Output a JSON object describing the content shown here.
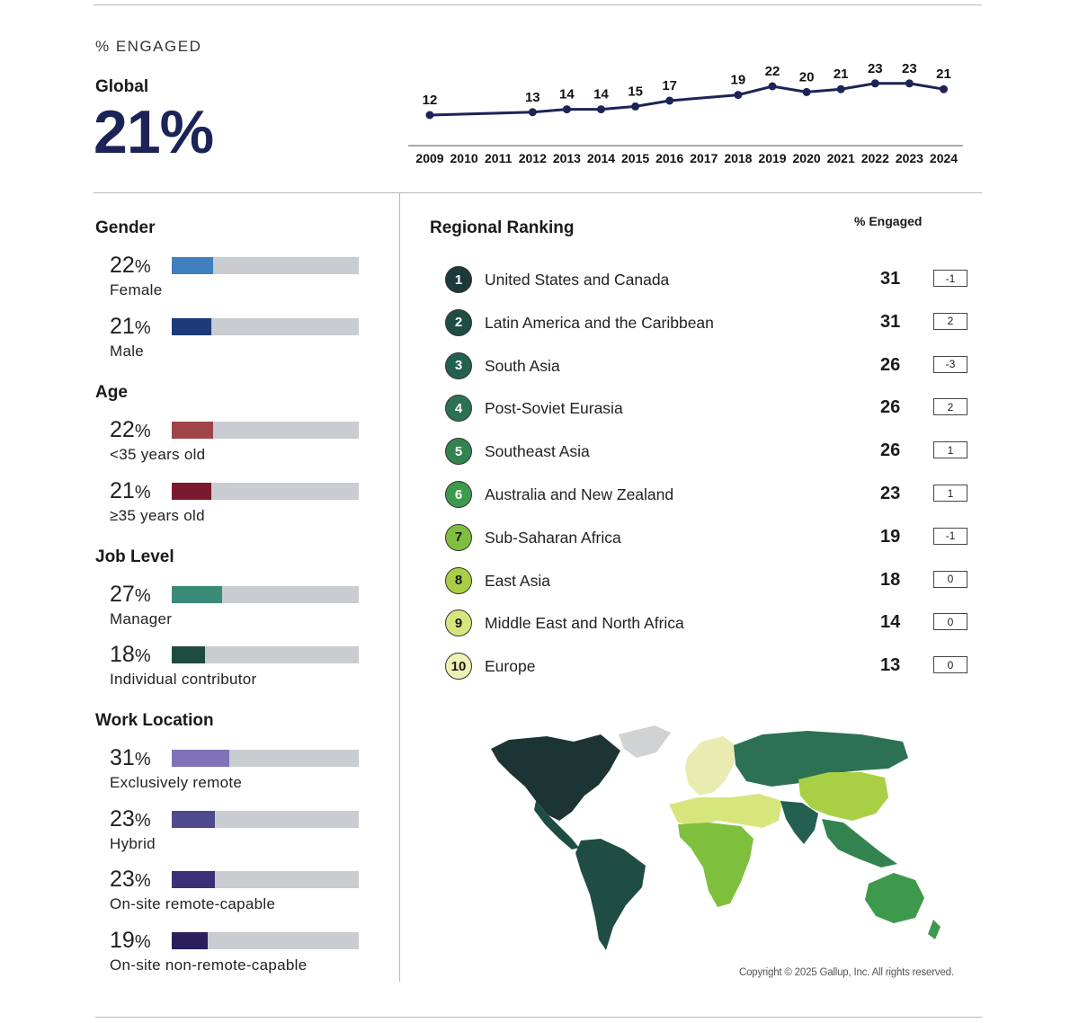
{
  "header": {
    "engaged_label": "% ENGAGED",
    "global_label": "Global",
    "global_value": "21%"
  },
  "chart_data": {
    "type": "line",
    "title": "% ENGAGED",
    "categories": [
      "2009",
      "2010",
      "2011",
      "2012",
      "2013",
      "2014",
      "2015",
      "2016",
      "2017",
      "2018",
      "2019",
      "2020",
      "2021",
      "2022",
      "2023",
      "2024"
    ],
    "series": [
      {
        "name": "Global",
        "values": [
          12,
          null,
          null,
          13,
          14,
          14,
          15,
          17,
          null,
          19,
          22,
          20,
          21,
          23,
          23,
          21
        ]
      }
    ],
    "xlabel": "",
    "ylabel": "",
    "ylim": [
      10,
      24
    ],
    "grid": false,
    "color": "#1c2457"
  },
  "breakdowns": {
    "gender": {
      "title": "Gender",
      "items": [
        {
          "value": "22",
          "unit": "%",
          "label": "Female",
          "color": "#3f7fbf",
          "fraction": 0.22
        },
        {
          "value": "21",
          "unit": "%",
          "label": "Male",
          "color": "#1e3a78",
          "fraction": 0.21
        }
      ]
    },
    "age": {
      "title": "Age",
      "items": [
        {
          "value": "22",
          "unit": "%",
          "label": "<35 years old",
          "color": "#a0434b",
          "fraction": 0.22
        },
        {
          "value": "21",
          "unit": "%",
          "label": "≥35 years old",
          "color": "#7a1a2c",
          "fraction": 0.21
        }
      ]
    },
    "job": {
      "title": "Job Level",
      "items": [
        {
          "value": "27",
          "unit": "%",
          "label": "Manager",
          "color": "#3a8a78",
          "fraction": 0.27
        },
        {
          "value": "18",
          "unit": "%",
          "label": "Individual contributor",
          "color": "#1f4a3e",
          "fraction": 0.18
        }
      ]
    },
    "work": {
      "title": "Work Location",
      "items": [
        {
          "value": "31",
          "unit": "%",
          "label": "Exclusively remote",
          "color": "#7f72b8",
          "fraction": 0.31
        },
        {
          "value": "23",
          "unit": "%",
          "label": "Hybrid",
          "color": "#4f4a8e",
          "fraction": 0.23
        },
        {
          "value": "23",
          "unit": "%",
          "label": "On-site remote-capable",
          "color": "#3b3078",
          "fraction": 0.23
        },
        {
          "value": "19",
          "unit": "%",
          "label": "On-site non-remote-capable",
          "color": "#2a1f5a",
          "fraction": 0.19
        }
      ]
    }
  },
  "ranking": {
    "title": "Regional Ranking",
    "column_label": "% Engaged",
    "rows": [
      {
        "rank": "1",
        "name": "United States and Canada",
        "value": "31",
        "change": "-1",
        "color": "#1c3a3a",
        "text": "#ffffff"
      },
      {
        "rank": "2",
        "name": "Latin America and the Caribbean",
        "value": "31",
        "change": "2",
        "color": "#1f4d44",
        "text": "#ffffff"
      },
      {
        "rank": "3",
        "name": "South Asia",
        "value": "26",
        "change": "-3",
        "color": "#23604f",
        "text": "#ffffff"
      },
      {
        "rank": "4",
        "name": "Post-Soviet Eurasia",
        "value": "26",
        "change": "2",
        "color": "#2c7154",
        "text": "#ffffff"
      },
      {
        "rank": "5",
        "name": "Southeast Asia",
        "value": "26",
        "change": "1",
        "color": "#32834f",
        "text": "#ffffff"
      },
      {
        "rank": "6",
        "name": "Australia and New Zealand",
        "value": "23",
        "change": "1",
        "color": "#3d9a4c",
        "text": "#ffffff"
      },
      {
        "rank": "7",
        "name": "Sub-Saharan Africa",
        "value": "19",
        "change": "-1",
        "color": "#7fbf3e",
        "text": "#1a1a1a"
      },
      {
        "rank": "8",
        "name": "East Asia",
        "value": "18",
        "change": "0",
        "color": "#a9d045",
        "text": "#1a1a1a"
      },
      {
        "rank": "9",
        "name": "Middle East and North Africa",
        "value": "14",
        "change": "0",
        "color": "#d7e67c",
        "text": "#1a1a1a"
      },
      {
        "rank": "10",
        "name": "Europe",
        "value": "13",
        "change": "0",
        "color": "#eef0b4",
        "text": "#1a1a1a"
      }
    ]
  },
  "copyright": "Copyright © 2025 Gallup, Inc. All rights reserved."
}
